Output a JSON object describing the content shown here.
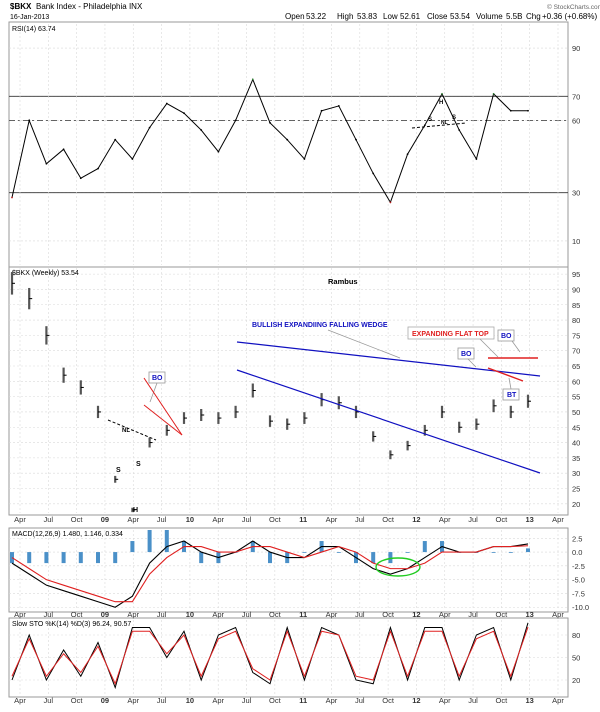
{
  "header": {
    "symbol": "$BKX",
    "name": "Bank Index - Philadelphia INX",
    "date": "16-Jan-2013",
    "open_label": "Open",
    "open": "53.22",
    "high_label": "High",
    "high": "53.83",
    "low_label": "Low",
    "low": "52.61",
    "close_label": "Close",
    "close": "53.54",
    "volume_label": "Volume",
    "volume": "5.5B",
    "chg_label": "Chg",
    "chg": "+0.36 (+0.68%)",
    "watermark": "© StockCharts.com"
  },
  "colors": {
    "price": "#555555",
    "wedge": "#1010c0",
    "flat_top": "#e02020",
    "rsi_line": "#000000",
    "rsi_overbought": "#2e7d32",
    "rsi_oversold": "#b71c1c",
    "macd_line": "#000000",
    "signal_line": "#e02020",
    "histogram": "#4a90c8",
    "ellipse": "#22cc22",
    "sto_k": "#000000",
    "sto_d": "#e02020"
  },
  "chart_data": [
    {
      "type": "line",
      "indicator": "RSI(14)",
      "label": "RSI(14) 63.74",
      "ylim": [
        0,
        100
      ],
      "yticks": [
        10,
        30,
        60,
        70,
        90
      ],
      "reference_lines": [
        30,
        60,
        70
      ],
      "x": [
        "2008-01",
        "2008-03",
        "2008-05",
        "2008-07",
        "2008-09",
        "2008-11",
        "2009-01",
        "2009-03",
        "2009-05",
        "2009-07",
        "2009-09",
        "2009-11",
        "2010-01",
        "2010-03",
        "2010-05",
        "2010-07",
        "2010-09",
        "2010-11",
        "2011-01",
        "2011-03",
        "2011-05",
        "2011-07",
        "2011-09",
        "2011-11",
        "2012-01",
        "2012-03",
        "2012-05",
        "2012-07",
        "2012-09",
        "2012-11",
        "2013-01"
      ],
      "values": [
        28,
        60,
        42,
        48,
        36,
        40,
        52,
        44,
        57,
        67,
        63,
        56,
        47,
        60,
        77,
        59,
        52,
        44,
        64,
        66,
        52,
        38,
        26,
        46,
        58,
        71,
        56,
        44,
        71,
        64,
        64
      ]
    },
    {
      "type": "line",
      "title": "Rambus",
      "label": "$BKX (Weekly) 53.54",
      "ylim": [
        17,
        97
      ],
      "yticks": [
        20,
        25,
        30,
        35,
        40,
        45,
        50,
        55,
        60,
        65,
        70,
        75,
        80,
        85,
        90,
        95
      ],
      "xticks": [
        "Apr",
        "Jul",
        "Oct",
        "09",
        "Apr",
        "Jul",
        "10",
        "Apr",
        "Jul",
        "Oct",
        "11",
        "Apr",
        "Jul",
        "Oct",
        "12",
        "Apr",
        "Jul",
        "Oct",
        "13",
        "Apr"
      ],
      "x": [
        "2008-01",
        "2008-03",
        "2008-05",
        "2008-07",
        "2008-09",
        "2008-11",
        "2009-01",
        "2009-03",
        "2009-05",
        "2009-07",
        "2009-09",
        "2009-11",
        "2010-01",
        "2010-03",
        "2010-05",
        "2010-07",
        "2010-09",
        "2010-11",
        "2011-01",
        "2011-03",
        "2011-05",
        "2011-07",
        "2011-09",
        "2011-11",
        "2012-01",
        "2012-03",
        "2012-05",
        "2012-07",
        "2012-09",
        "2012-11",
        "2013-01"
      ],
      "values": [
        92,
        87,
        75,
        62,
        58,
        50,
        28,
        18,
        40,
        44,
        48,
        49,
        48,
        50,
        57,
        47,
        46,
        48,
        54,
        53,
        50,
        42,
        36,
        39,
        44,
        50,
        45,
        46,
        52,
        50,
        53.5
      ],
      "annotations": {
        "wedge_label": "BULLISH EXPANDIING FALLING WEDGE",
        "flat_top_label": "EXPANDING FLAT TOP",
        "bo_1": "BO",
        "bo_2": "BO",
        "bo_3": "BO",
        "bt": "BT",
        "shoulder_left": "S",
        "shoulder_right": "S",
        "head": "H",
        "neckline_tag": "NL"
      }
    },
    {
      "type": "line",
      "indicator": "MACD",
      "label": "MACD(12,26,9) 1.480, 1.146, 0.334",
      "ylim": [
        -10.5,
        4.0
      ],
      "yticks": [
        2.5,
        0.0,
        -2.5,
        -5.0,
        -7.5,
        -10.0
      ],
      "series": [
        {
          "name": "MACD",
          "values": [
            -2,
            -4,
            -6,
            -7,
            -8,
            -9,
            -10,
            -8,
            -2,
            1,
            2,
            0,
            -1,
            0,
            2,
            0,
            -1,
            -1,
            1,
            1,
            -1,
            -3,
            -4,
            -3,
            -1,
            1,
            0,
            0,
            1,
            1,
            1.48
          ]
        },
        {
          "name": "Signal",
          "values": [
            -1,
            -3,
            -5,
            -6,
            -7,
            -8,
            -9,
            -9,
            -4,
            -1,
            1,
            1,
            0,
            0,
            1,
            1,
            0,
            -1,
            0,
            1,
            0,
            -2,
            -3,
            -3,
            -2,
            0,
            0,
            0,
            1,
            1,
            1.146
          ]
        }
      ]
    },
    {
      "type": "line",
      "indicator": "Slow STO",
      "label": "Slow STO %K(14) %D(3) 96.24, 90.57",
      "ylim": [
        0,
        100
      ],
      "yticks": [
        20,
        50,
        80
      ],
      "series": [
        {
          "name": "%K",
          "values": [
            20,
            80,
            20,
            60,
            25,
            70,
            10,
            90,
            90,
            50,
            85,
            20,
            80,
            90,
            30,
            15,
            90,
            20,
            90,
            80,
            20,
            15,
            90,
            20,
            90,
            90,
            20,
            80,
            90,
            20,
            96.24
          ]
        },
        {
          "name": "%D",
          "values": [
            25,
            75,
            25,
            55,
            30,
            65,
            15,
            85,
            85,
            55,
            80,
            25,
            75,
            85,
            35,
            20,
            85,
            25,
            85,
            80,
            25,
            20,
            85,
            25,
            85,
            85,
            25,
            75,
            85,
            25,
            90.57
          ]
        }
      ]
    }
  ]
}
